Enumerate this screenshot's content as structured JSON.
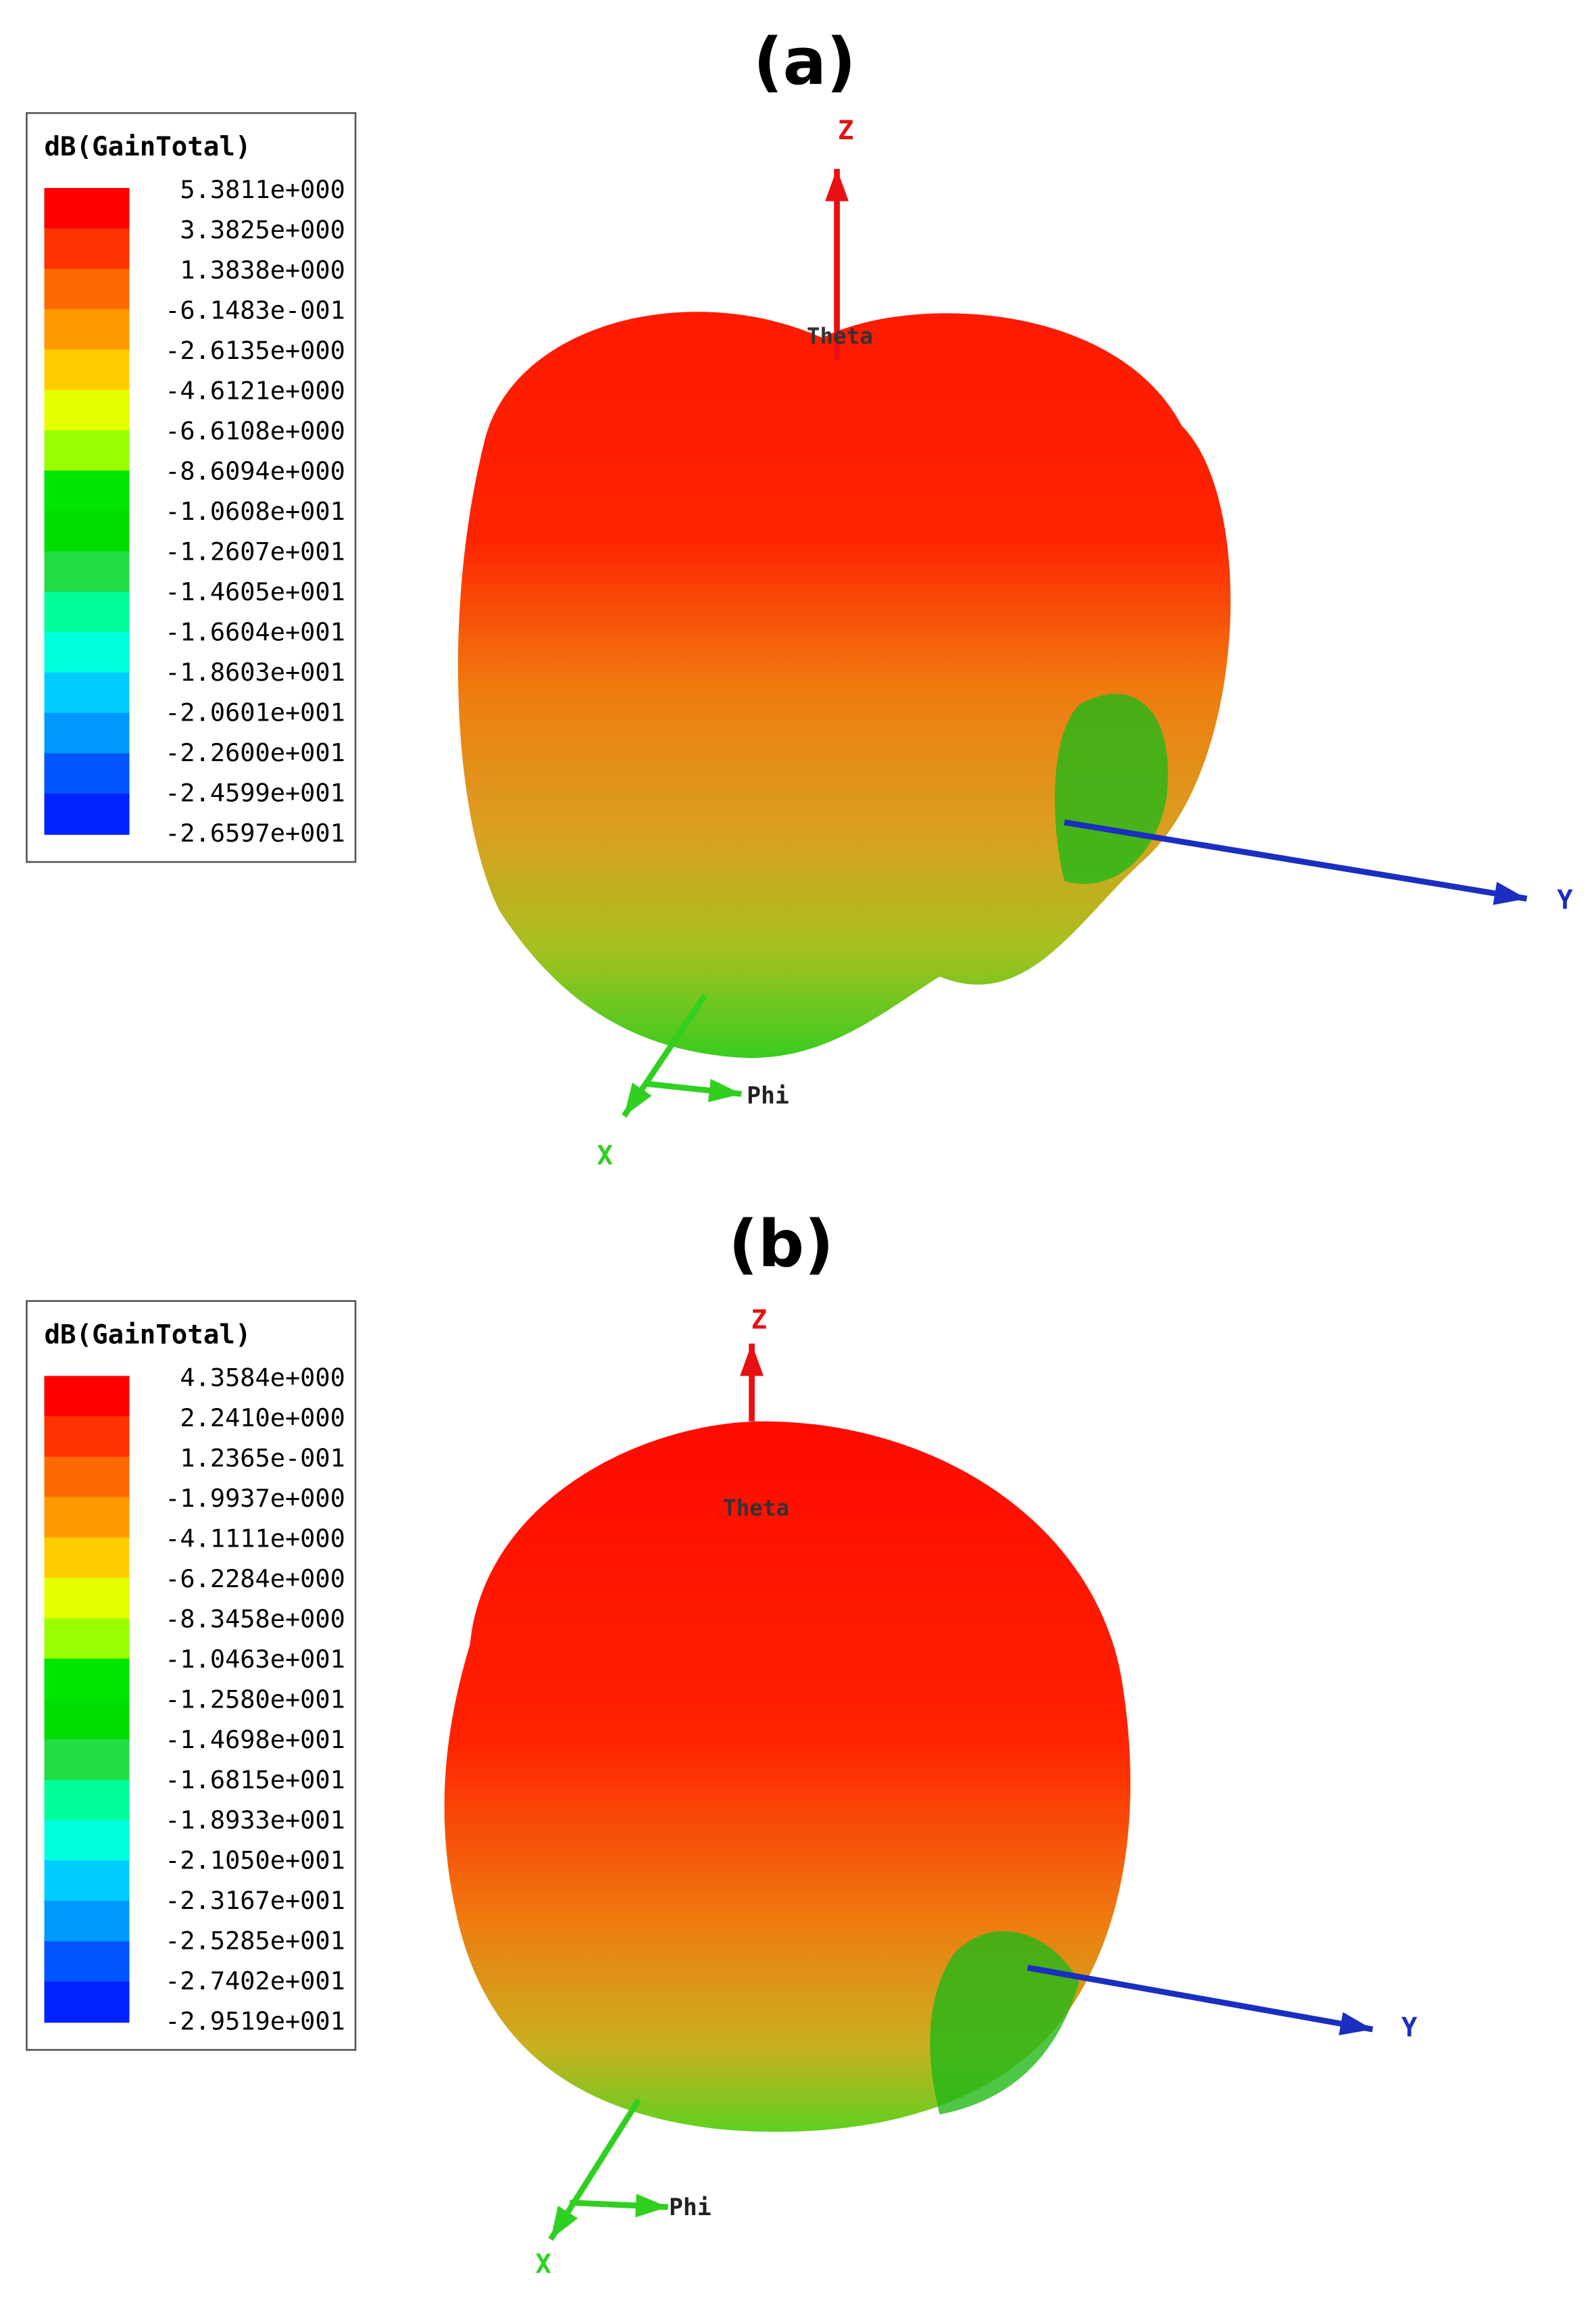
{
  "panels": [
    {
      "label": "(a)",
      "legend": {
        "title": "dB(GainTotal)",
        "entries": [
          "5.3811e+000",
          "3.3825e+000",
          "1.3838e+000",
          "-6.1483e-001",
          "-2.6135e+000",
          "-4.6121e+000",
          "-6.6108e+000",
          "-8.6094e+000",
          "-1.0608e+001",
          "-1.2607e+001",
          "-1.4605e+001",
          "-1.6604e+001",
          "-1.8603e+001",
          "-2.0601e+001",
          "-2.2600e+001",
          "-2.4599e+001",
          "-2.6597e+001"
        ]
      },
      "axes": {
        "z": "Z",
        "y": "Y",
        "x": "X",
        "theta": "Theta",
        "phi": "Phi"
      }
    },
    {
      "label": "(b)",
      "legend": {
        "title": "dB(GainTotal)",
        "entries": [
          "4.3584e+000",
          "2.2410e+000",
          "1.2365e-001",
          "-1.9937e+000",
          "-4.1111e+000",
          "-6.2284e+000",
          "-8.3458e+000",
          "-1.0463e+001",
          "-1.2580e+001",
          "-1.4698e+001",
          "-1.6815e+001",
          "-1.8933e+001",
          "-2.1050e+001",
          "-2.3167e+001",
          "-2.5285e+001",
          "-2.7402e+001",
          "-2.9519e+001"
        ]
      },
      "axes": {
        "z": "Z",
        "y": "Y",
        "x": "X",
        "theta": "Theta",
        "phi": "Phi"
      }
    }
  ]
}
